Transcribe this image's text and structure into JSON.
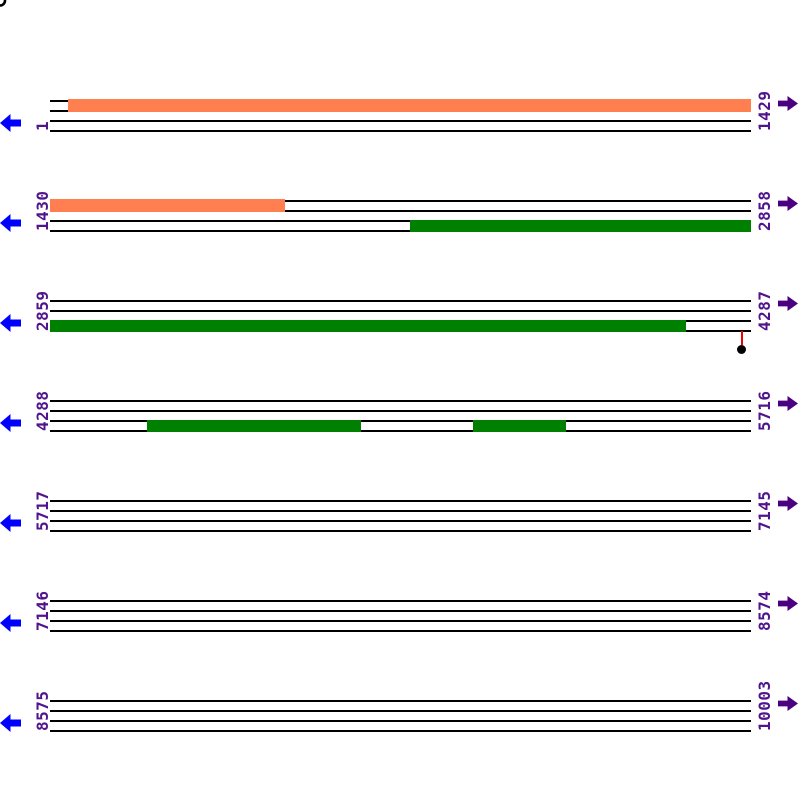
{
  "page": {
    "background": "#FFFFFF"
  },
  "icons": {
    "left_nav": "arrow-left-icon",
    "right_nav": "arrow-right-icon",
    "marker": "lollipop-marker-icon",
    "corner": "corner-arc-mark"
  },
  "colors": {
    "forward_orf": "#FF7F50",
    "reverse_orf": "#008000",
    "frame_line": "#000000",
    "left_arrow": "#0000FF",
    "right_arrow": "#4B0082",
    "coordinate_label": "#50148C",
    "marker_stem": "#EE0000",
    "marker_dot": "#000000"
  },
  "sequence_viewer": {
    "total_rows": 7,
    "rows": [
      {
        "start_label": "1",
        "end_label": "1429",
        "features": [
          {
            "strand": "forward",
            "start": 0.026,
            "end": 1.0
          }
        ],
        "markers": []
      },
      {
        "start_label": "1430",
        "end_label": "2858",
        "features": [
          {
            "strand": "forward",
            "start": 0.0,
            "end": 0.335
          },
          {
            "strand": "reverse",
            "start": 0.514,
            "end": 1.0
          }
        ],
        "markers": []
      },
      {
        "start_label": "2859",
        "end_label": "4287",
        "features": [
          {
            "strand": "reverse",
            "start": 0.0,
            "end": 0.907
          }
        ],
        "markers": [
          {
            "pos": 0.987
          }
        ]
      },
      {
        "start_label": "4288",
        "end_label": "5716",
        "features": [
          {
            "strand": "reverse",
            "start": 0.138,
            "end": 0.444
          },
          {
            "strand": "reverse",
            "start": 0.603,
            "end": 0.736
          }
        ],
        "markers": []
      },
      {
        "start_label": "5717",
        "end_label": "7145",
        "features": [],
        "markers": []
      },
      {
        "start_label": "7146",
        "end_label": "8574",
        "features": [],
        "markers": []
      },
      {
        "start_label": "8575",
        "end_label": "10003",
        "features": [],
        "markers": []
      }
    ]
  }
}
